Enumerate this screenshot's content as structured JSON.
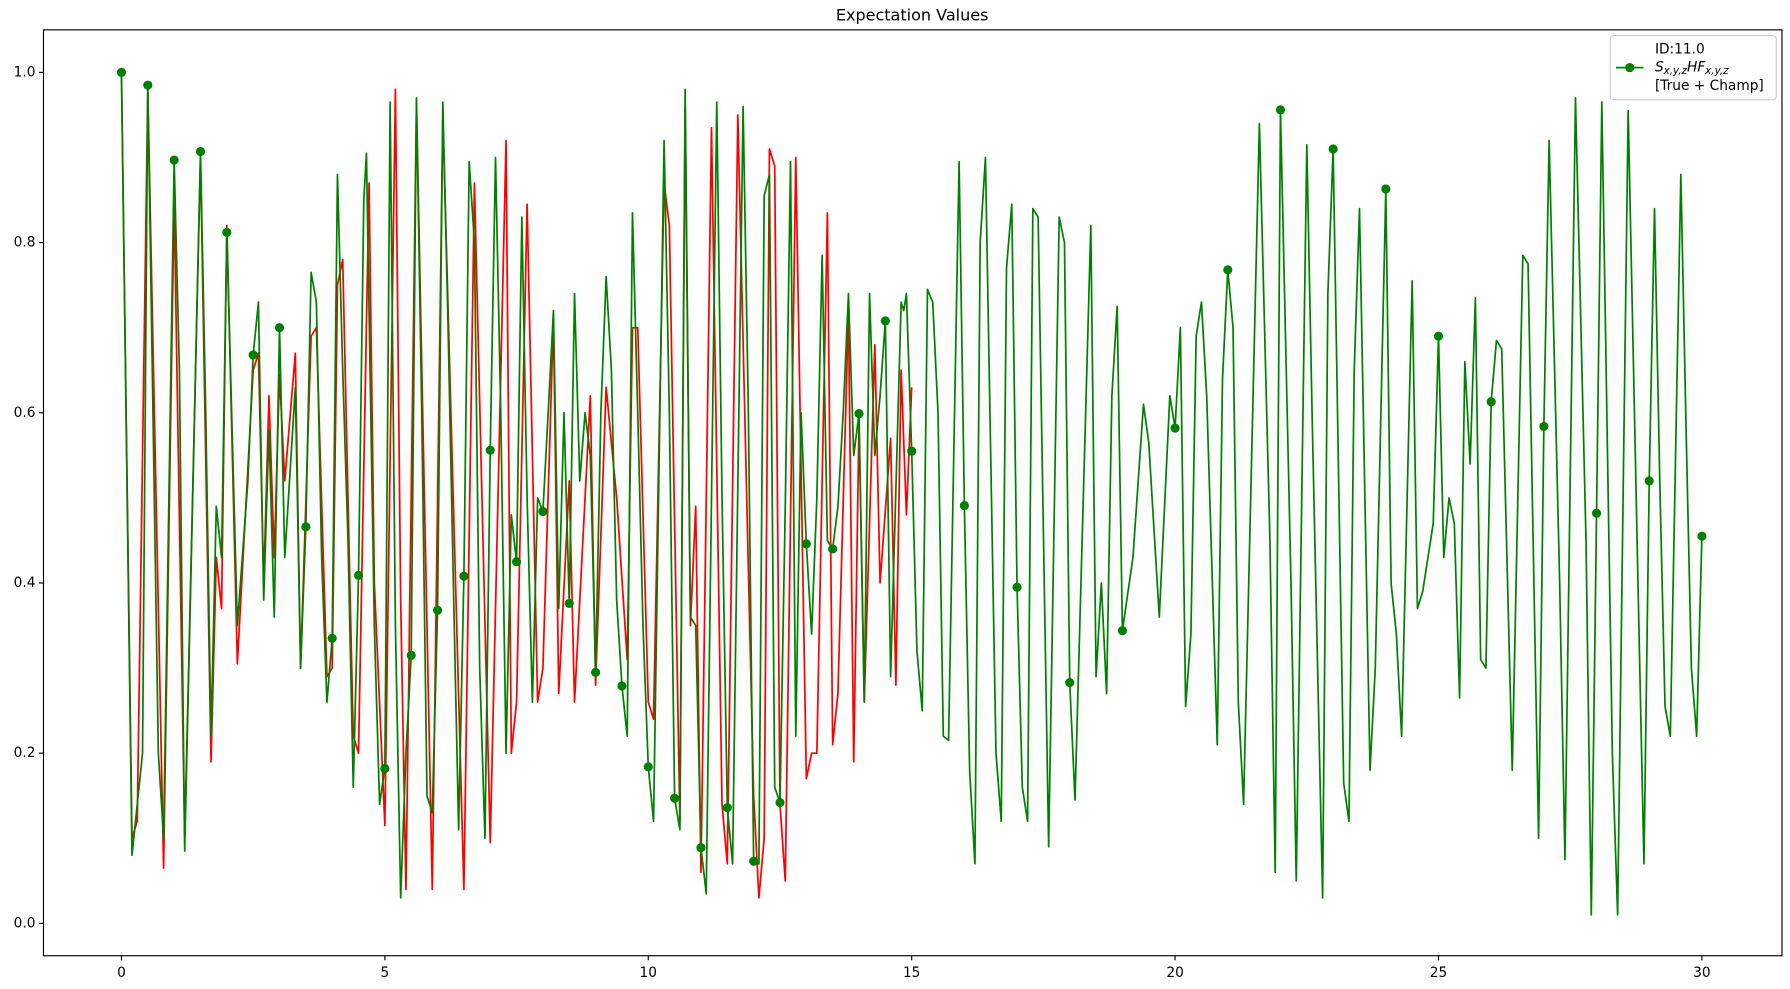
{
  "chart_data": {
    "type": "line",
    "title": "Expectation Values",
    "xlim": [
      -1.48,
      31.52
    ],
    "ylim": [
      -0.038,
      1.05
    ],
    "xticks": [
      0,
      5,
      10,
      15,
      20,
      25,
      30
    ],
    "yticks": [
      {
        "value": 0,
        "label": "0.0"
      },
      0.2,
      0.4,
      0.6,
      0.8,
      {
        "value": 1,
        "label": "1.0"
      }
    ],
    "legend": "upper right",
    "series": [
      {
        "color": "#ff0000",
        "x": [
          0,
          0.2,
          0.3,
          0.5,
          0.8,
          1.0,
          1.2,
          1.5,
          1.7,
          1.8,
          1.9,
          2.0,
          2.2,
          2.5,
          2.6,
          2.7,
          2.8,
          2.9,
          3.0,
          3.1,
          3.3,
          3.4,
          3.6,
          3.7,
          3.9,
          4.0,
          4.1,
          4.2,
          4.4,
          4.5,
          4.7,
          4.8,
          5.0,
          5.2,
          5.3,
          5.4,
          5.6,
          5.9,
          6.1,
          6.5,
          6.7,
          7.0,
          7.3,
          7.4,
          7.5,
          7.7,
          7.9,
          8.0,
          8.2,
          8.3,
          8.5,
          8.6,
          8.9,
          9.0,
          9.2,
          9.4,
          9.6,
          9.7,
          9.8,
          10.0,
          10.1,
          10.3,
          10.4,
          10.6,
          10.7,
          10.8,
          10.9,
          11.0,
          11.2,
          11.4,
          11.5,
          11.7,
          12.0,
          12.1,
          12.2,
          12.3,
          12.4,
          12.5,
          12.6,
          12.8,
          13.0,
          13.1,
          13.2,
          13.4,
          13.5,
          13.6,
          13.8,
          13.9,
          14.0,
          14.1,
          14.3,
          14.4,
          14.6,
          14.7,
          14.8,
          14.9,
          15.0
        ],
        "values": [
          1.0,
          0.1,
          0.12,
          0.98,
          0.065,
          0.85,
          0.1,
          0.9,
          0.19,
          0.43,
          0.37,
          0.82,
          0.305,
          0.65,
          0.67,
          0.4,
          0.62,
          0.43,
          0.645,
          0.52,
          0.67,
          0.3,
          0.69,
          0.7,
          0.29,
          0.3,
          0.75,
          0.78,
          0.22,
          0.2,
          0.87,
          0.4,
          0.115,
          0.98,
          0.38,
          0.04,
          0.965,
          0.04,
          0.95,
          0.04,
          0.87,
          0.095,
          0.92,
          0.2,
          0.26,
          0.845,
          0.26,
          0.3,
          0.71,
          0.27,
          0.52,
          0.26,
          0.62,
          0.28,
          0.63,
          0.5,
          0.31,
          0.7,
          0.7,
          0.26,
          0.24,
          0.87,
          0.82,
          0.12,
          0.96,
          0.35,
          0.49,
          0.06,
          0.935,
          0.14,
          0.07,
          0.95,
          0.15,
          0.03,
          0.1,
          0.91,
          0.89,
          0.14,
          0.05,
          0.9,
          0.17,
          0.2,
          0.2,
          0.835,
          0.21,
          0.27,
          0.72,
          0.19,
          0.59,
          0.26,
          0.68,
          0.4,
          0.57,
          0.28,
          0.65,
          0.48,
          0.63
        ]
      },
      {
        "name": [
          "ID:11.0",
          [
            "S",
            "x,y,z",
            "HF",
            "x,y,z"
          ],
          "[True + Champ]"
        ],
        "color": "#008000",
        "x": [
          0,
          0.2,
          0.4,
          0.5,
          0.7,
          0.8,
          1.0,
          1.1,
          1.2,
          1.5,
          1.6,
          1.7,
          1.8,
          1.9,
          2.0,
          2.2,
          2.4,
          2.5,
          2.6,
          2.7,
          2.8,
          2.9,
          3.0,
          3.1,
          3.3,
          3.4,
          3.5,
          3.6,
          3.7,
          3.8,
          3.9,
          4.0,
          4.1,
          4.2,
          4.3,
          4.4,
          4.5,
          4.6,
          4.65,
          4.8,
          4.9,
          5.0,
          5.1,
          5.2,
          5.3,
          5.4,
          5.5,
          5.6,
          5.7,
          5.8,
          5.9,
          6.0,
          6.1,
          6.2,
          6.3,
          6.4,
          6.5,
          6.6,
          6.7,
          6.8,
          6.9,
          7.0,
          7.1,
          7.2,
          7.3,
          7.4,
          7.5,
          7.6,
          7.7,
          7.8,
          7.9,
          8.0,
          8.1,
          8.2,
          8.3,
          8.4,
          8.5,
          8.6,
          8.7,
          8.8,
          8.9,
          9.0,
          9.1,
          9.2,
          9.3,
          9.4,
          9.5,
          9.6,
          9.7,
          9.8,
          9.9,
          10.0,
          10.1,
          10.3,
          10.4,
          10.5,
          10.6,
          10.7,
          10.8,
          10.9,
          11.0,
          11.1,
          11.3,
          11.4,
          11.5,
          11.6,
          11.8,
          11.9,
          12.0,
          12.1,
          12.2,
          12.3,
          12.4,
          12.5,
          12.6,
          12.7,
          12.8,
          12.9,
          13.0,
          13.1,
          13.2,
          13.3,
          13.4,
          13.5,
          13.6,
          13.7,
          13.8,
          13.9,
          14.0,
          14.1,
          14.2,
          14.3,
          14.4,
          14.5,
          14.6,
          14.8,
          14.85,
          14.9,
          15.0,
          15.1,
          15.2,
          15.3,
          15.4,
          15.5,
          15.6,
          15.7,
          15.9,
          16.0,
          16.1,
          16.2,
          16.3,
          16.4,
          16.6,
          16.7,
          16.8,
          16.9,
          17.0,
          17.1,
          17.2,
          17.3,
          17.4,
          17.6,
          17.8,
          17.9,
          18.0,
          18.1,
          18.4,
          18.5,
          18.6,
          18.7,
          18.8,
          18.9,
          19.0,
          19.2,
          19.4,
          19.5,
          19.7,
          19.9,
          20.0,
          20.1,
          20.2,
          20.3,
          20.4,
          20.5,
          20.6,
          20.8,
          20.9,
          21.0,
          21.1,
          21.2,
          21.3,
          21.6,
          21.8,
          21.9,
          22.0,
          22.2,
          22.3,
          22.5,
          22.6,
          22.8,
          22.9,
          23.0,
          23.2,
          23.3,
          23.4,
          23.5,
          23.7,
          23.8,
          24.0,
          24.1,
          24.2,
          24.3,
          24.5,
          24.6,
          24.7,
          24.9,
          25.0,
          25.1,
          25.2,
          25.3,
          25.4,
          25.5,
          25.6,
          25.7,
          25.8,
          25.9,
          26.0,
          26.1,
          26.2,
          26.4,
          26.6,
          26.7,
          26.9,
          27.0,
          27.1,
          27.3,
          27.4,
          27.6,
          27.8,
          27.9,
          28.0,
          28.1,
          28.3,
          28.4,
          28.6,
          28.8,
          28.9,
          29.0,
          29.1,
          29.2,
          29.3,
          29.4,
          29.6,
          29.7,
          29.8,
          29.9,
          30.0
        ],
        "values": [
          1.0,
          0.08,
          0.2,
          0.985,
          0.2,
          0.1,
          0.897,
          0.65,
          0.085,
          0.907,
          0.6,
          0.22,
          0.49,
          0.43,
          0.812,
          0.35,
          0.52,
          0.668,
          0.73,
          0.38,
          0.58,
          0.36,
          0.7,
          0.43,
          0.63,
          0.3,
          0.466,
          0.765,
          0.73,
          0.43,
          0.26,
          0.335,
          0.88,
          0.65,
          0.45,
          0.16,
          0.409,
          0.85,
          0.905,
          0.35,
          0.14,
          0.182,
          0.965,
          0.35,
          0.03,
          0.2,
          0.315,
          0.97,
          0.6,
          0.15,
          0.13,
          0.368,
          0.965,
          0.7,
          0.4,
          0.11,
          0.408,
          0.895,
          0.8,
          0.3,
          0.1,
          0.556,
          0.9,
          0.6,
          0.2,
          0.48,
          0.425,
          0.83,
          0.5,
          0.26,
          0.5,
          0.484,
          0.6,
          0.72,
          0.37,
          0.6,
          0.376,
          0.74,
          0.52,
          0.6,
          0.55,
          0.295,
          0.6,
          0.76,
          0.65,
          0.38,
          0.279,
          0.22,
          0.835,
          0.6,
          0.35,
          0.184,
          0.12,
          0.92,
          0.6,
          0.147,
          0.11,
          0.98,
          0.36,
          0.35,
          0.089,
          0.035,
          0.965,
          0.5,
          0.136,
          0.07,
          0.96,
          0.6,
          0.073,
          0.07,
          0.855,
          0.88,
          0.16,
          0.142,
          0.49,
          0.895,
          0.22,
          0.6,
          0.446,
          0.34,
          0.5,
          0.785,
          0.45,
          0.44,
          0.49,
          0.6,
          0.74,
          0.55,
          0.599,
          0.26,
          0.74,
          0.55,
          0.62,
          0.708,
          0.29,
          0.73,
          0.72,
          0.74,
          0.555,
          0.32,
          0.25,
          0.745,
          0.73,
          0.6,
          0.22,
          0.215,
          0.895,
          0.491,
          0.18,
          0.07,
          0.8,
          0.9,
          0.2,
          0.12,
          0.77,
          0.845,
          0.395,
          0.16,
          0.12,
          0.84,
          0.83,
          0.09,
          0.83,
          0.8,
          0.283,
          0.145,
          0.82,
          0.29,
          0.4,
          0.27,
          0.62,
          0.725,
          0.344,
          0.43,
          0.61,
          0.565,
          0.36,
          0.62,
          0.582,
          0.7,
          0.255,
          0.34,
          0.69,
          0.73,
          0.62,
          0.21,
          0.64,
          0.768,
          0.7,
          0.26,
          0.14,
          0.94,
          0.45,
          0.06,
          0.956,
          0.4,
          0.05,
          0.915,
          0.6,
          0.03,
          0.74,
          0.91,
          0.165,
          0.12,
          0.65,
          0.84,
          0.18,
          0.3,
          0.863,
          0.4,
          0.34,
          0.22,
          0.755,
          0.37,
          0.39,
          0.47,
          0.69,
          0.43,
          0.5,
          0.47,
          0.265,
          0.66,
          0.54,
          0.735,
          0.31,
          0.3,
          0.613,
          0.685,
          0.675,
          0.18,
          0.785,
          0.775,
          0.1,
          0.584,
          0.92,
          0.4,
          0.075,
          0.97,
          0.45,
          0.01,
          0.482,
          0.965,
          0.2,
          0.01,
          0.955,
          0.36,
          0.07,
          0.52,
          0.84,
          0.52,
          0.255,
          0.22,
          0.88,
          0.58,
          0.3,
          0.22,
          0.455
        ],
        "markers": {
          "x": [
            0,
            0.5,
            1,
            1.5,
            2,
            2.5,
            3,
            3.5,
            4,
            4.5,
            5,
            5.5,
            6,
            6.5,
            7,
            7.5,
            8,
            8.5,
            9,
            9.5,
            10,
            10.5,
            11,
            11.5,
            12,
            12.5,
            13,
            13.5,
            14,
            14.5,
            15,
            16,
            17,
            18,
            19,
            20,
            21,
            22,
            23,
            24,
            25,
            26,
            27,
            28,
            29,
            30
          ],
          "values": [
            1.0,
            0.985,
            0.897,
            0.907,
            0.812,
            0.668,
            0.7,
            0.466,
            0.335,
            0.409,
            0.182,
            0.315,
            0.368,
            0.408,
            0.556,
            0.425,
            0.484,
            0.376,
            0.295,
            0.279,
            0.184,
            0.147,
            0.089,
            0.136,
            0.073,
            0.142,
            0.446,
            0.44,
            0.599,
            0.708,
            0.555,
            0.491,
            0.395,
            0.283,
            0.344,
            0.582,
            0.768,
            0.956,
            0.91,
            0.863,
            0.69,
            0.613,
            0.584,
            0.482,
            0.52,
            0.455
          ]
        }
      }
    ]
  }
}
